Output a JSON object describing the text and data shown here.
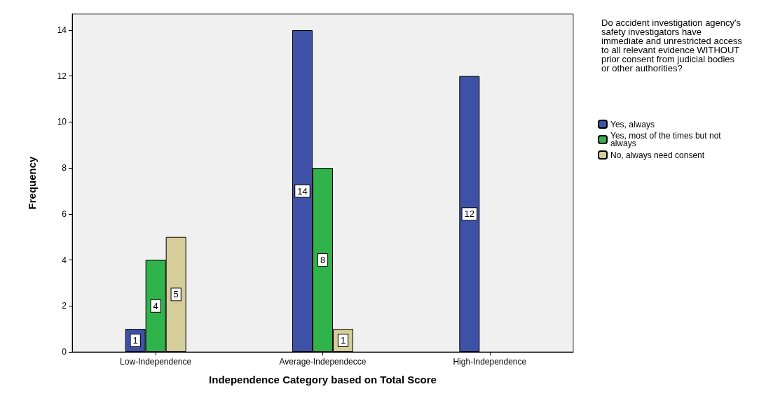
{
  "chart_data": {
    "type": "bar",
    "xlabel": "Independence Category based on Total Score",
    "ylabel": "Frequency",
    "legend_title": "Do accident investigation agency's safety investigators have immediate and unrestricted access to all relevant evidence WITHOUT prior consent from judicial bodies or other authorities?",
    "categories": [
      "Low-Independence",
      "Average-Independecce",
      "High-Independence"
    ],
    "series": [
      {
        "name": "Yes, always",
        "color": "#3d51a6",
        "values": [
          1,
          14,
          12
        ]
      },
      {
        "name": "Yes, most of the times but not always",
        "color": "#2fb34a",
        "values": [
          4,
          8,
          null
        ]
      },
      {
        "name": "No, always need consent",
        "color": "#d5cd9a",
        "values": [
          5,
          1,
          null
        ]
      }
    ],
    "ylim": [
      0,
      14.7
    ],
    "yticks": [
      0,
      2,
      4,
      6,
      8,
      10,
      12,
      14
    ],
    "grid": false,
    "legend": "right",
    "data_labels": true
  }
}
